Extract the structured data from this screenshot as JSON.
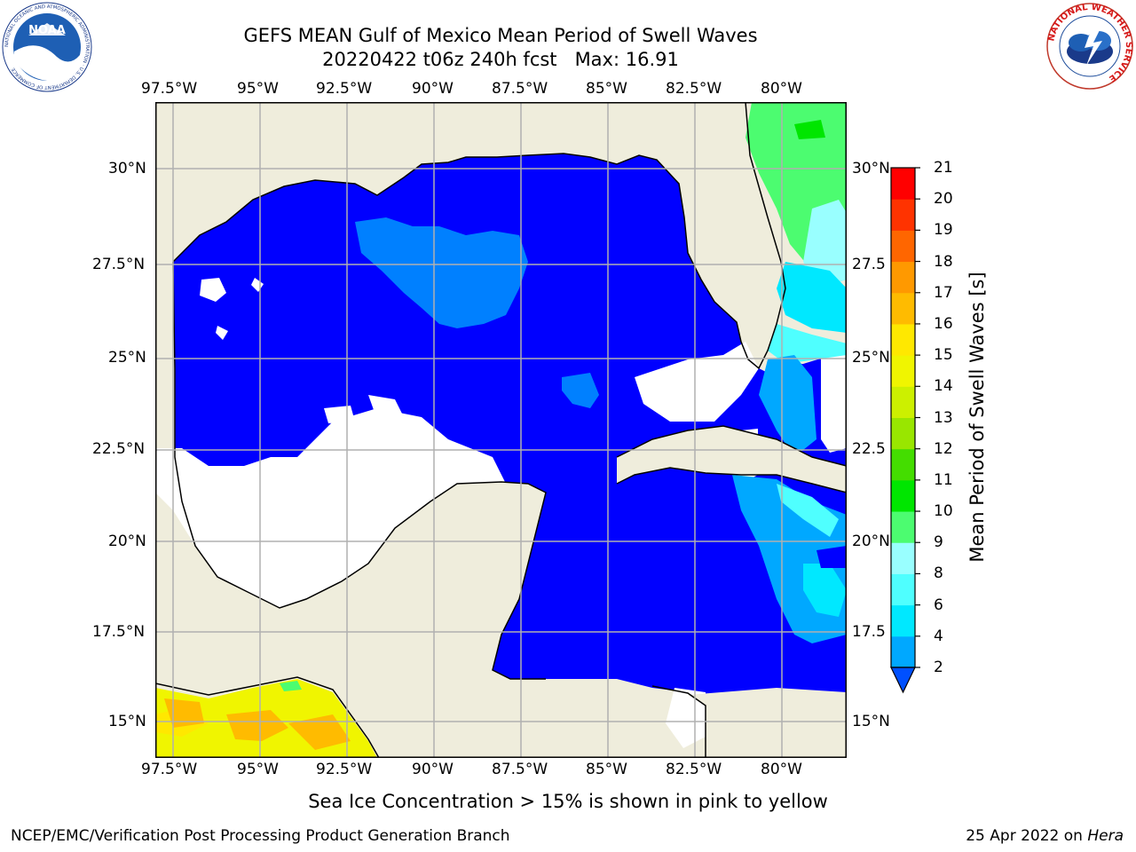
{
  "header": {
    "title_line1": "GEFS MEAN Gulf of Mexico Mean Period of Swell Waves",
    "title_line2": "20220422 t06z 240h fcst   Max: 16.91"
  },
  "logos": {
    "noaa_text": "NOAA",
    "noaa_ring": "NATIONAL OCEANIC AND ATMOSPHERIC ADMINISTRATION · U.S. DEPARTMENT OF COMMERCE",
    "nws_ring": "NATIONAL WEATHER SERVICE"
  },
  "map": {
    "lon_labels": [
      "97.5°W",
      "95°W",
      "92.5°W",
      "90°W",
      "87.5°W",
      "85°W",
      "82.5°W",
      "80°W"
    ],
    "lat_labels_left": [
      "30°N",
      "27.5°N",
      "25°N",
      "22.5°N",
      "20°N",
      "17.5°N",
      "15°N"
    ],
    "lat_labels_right": [
      "30°N",
      "27.5",
      "25°N",
      "22.5",
      "20°N",
      "17.5",
      "15°N"
    ],
    "colors": {
      "land": "#efeddc",
      "ocean_main": "#0000ff",
      "grid": "#b0b0b0",
      "coast": "#000000"
    }
  },
  "colorbar": {
    "label": "Mean Period of Swell Waves [s]",
    "ticks": [
      "2",
      "4",
      "6",
      "8",
      "9",
      "10",
      "11",
      "12",
      "13",
      "14",
      "15",
      "16",
      "17",
      "18",
      "19",
      "20",
      "21"
    ],
    "colors": [
      "#0050ff",
      "#00a8ff",
      "#00e8ff",
      "#4fffff",
      "#99ffff",
      "#4cfc70",
      "#00e600",
      "#44dd00",
      "#99e600",
      "#ccf000",
      "#f0f500",
      "#ffe800",
      "#ffbb00",
      "#ff9900",
      "#ff6600",
      "#ff3300",
      "#ff0000"
    ]
  },
  "footer": {
    "note": "Sea Ice Concentration > 15% is shown in pink to yellow",
    "left": "NCEP/EMC/Verification Post Processing Product Generation Branch",
    "right_date": "25 Apr 2022 on ",
    "right_host": "Hera"
  }
}
